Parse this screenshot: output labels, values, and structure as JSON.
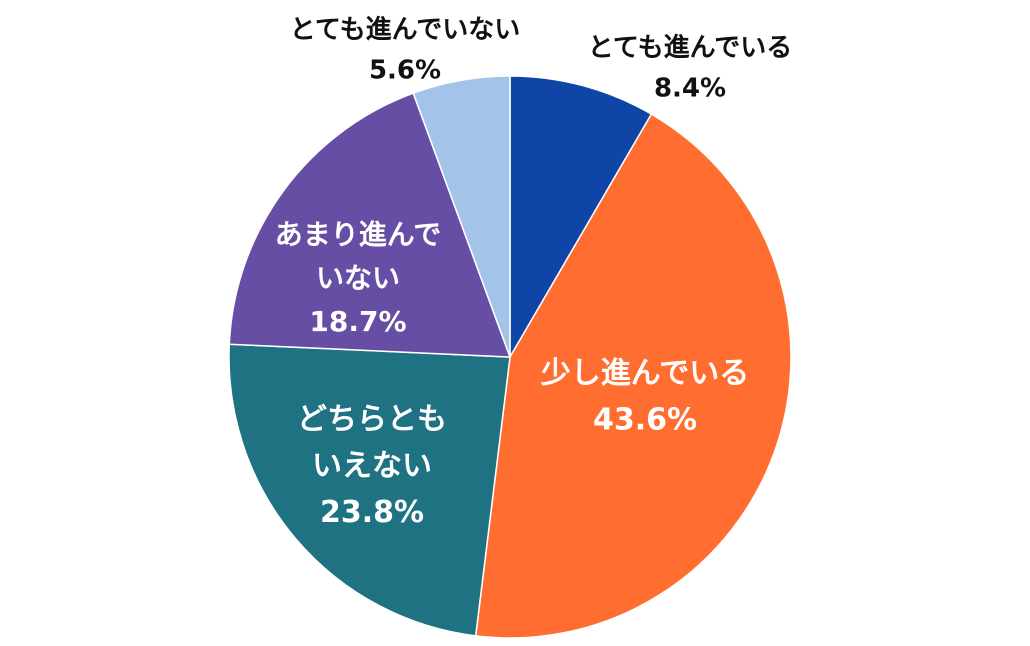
{
  "chart_data": {
    "type": "pie",
    "title": "",
    "start": "12 o'clock",
    "direction": "clockwise",
    "slices": [
      {
        "label_lines": [
          "とても進んでいる"
        ],
        "value": 8.4,
        "value_label": "8.4%",
        "color": "#0f45a6",
        "label_color": "#111111",
        "label_position": "outside"
      },
      {
        "label_lines": [
          "少し進んでいる"
        ],
        "value": 43.6,
        "value_label": "43.6%",
        "color": "#ff6d30",
        "label_color": "#ffffff",
        "label_position": "inside"
      },
      {
        "label_lines": [
          "どちらとも",
          "いえない"
        ],
        "value": 23.8,
        "value_label": "23.8%",
        "color": "#1f7282",
        "label_color": "#ffffff",
        "label_position": "inside"
      },
      {
        "label_lines": [
          "あまり進んで",
          "いない"
        ],
        "value": 18.7,
        "value_label": "18.7%",
        "color": "#654ea3",
        "label_color": "#ffffff",
        "label_position": "inside"
      },
      {
        "label_lines": [
          "とても進んでいない"
        ],
        "value": 5.6,
        "value_label": "5.6%",
        "color": "#a3c4e8",
        "label_color": "#111111",
        "label_position": "outside"
      }
    ]
  }
}
